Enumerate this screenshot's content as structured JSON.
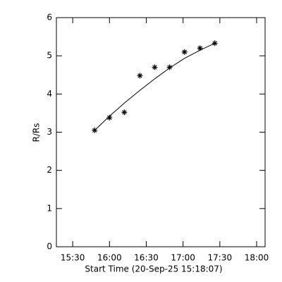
{
  "chart_data": {
    "type": "scatter",
    "x_label": "Start Time (20-Sep-25 15:18:07)",
    "y_label": "R/Rs",
    "x": [
      947.9,
      960,
      972.1,
      984.8,
      996.9,
      1009,
      1021.2,
      1033.8,
      1045.9
    ],
    "values": [
      3.05,
      3.38,
      3.52,
      4.48,
      4.7,
      4.7,
      5.1,
      5.2,
      5.33
    ],
    "color": "#000000",
    "marker": "asterisk",
    "fit": {
      "x": [
        948,
        960,
        972,
        985,
        997,
        1009,
        1021,
        1034,
        1046
      ],
      "values": [
        3.05,
        3.42,
        3.76,
        4.1,
        4.4,
        4.68,
        4.93,
        5.15,
        5.33
      ],
      "color": "#000000"
    },
    "xlim": [
      916.7,
      1086.9
    ],
    "xticks": [
      {
        "value": 930,
        "label": "15:30"
      },
      {
        "value": 960,
        "label": "16:00"
      },
      {
        "value": 990,
        "label": "16:30"
      },
      {
        "value": 1020,
        "label": "17:00"
      },
      {
        "value": 1050,
        "label": "17:30"
      },
      {
        "value": 1080,
        "label": "18:00"
      }
    ],
    "ylim": [
      0,
      6
    ],
    "yticks": [
      0,
      1,
      2,
      3,
      4,
      5,
      6
    ]
  }
}
